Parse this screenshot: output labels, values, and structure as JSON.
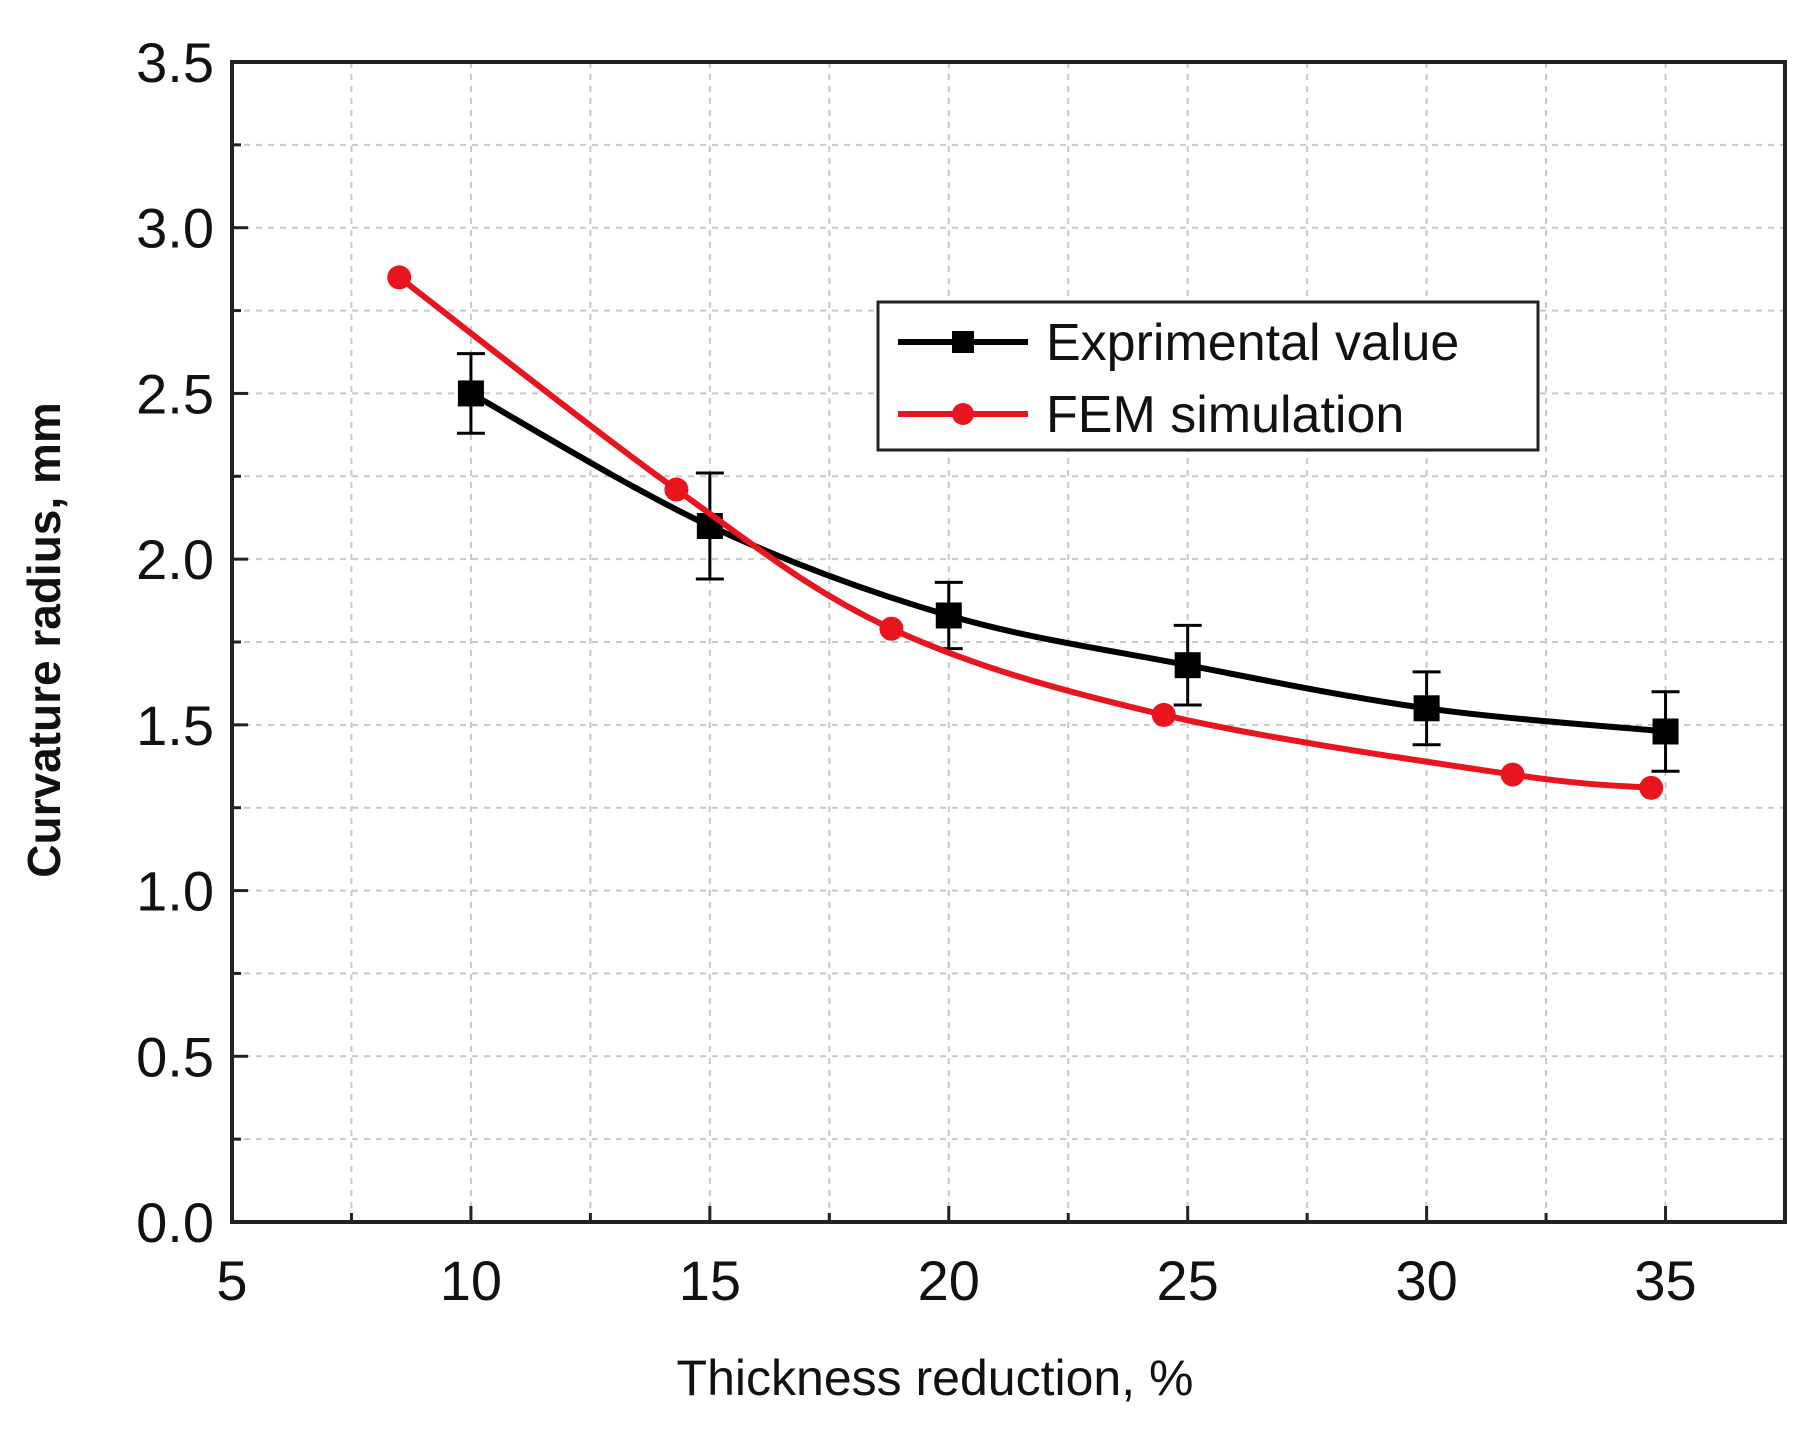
{
  "chart_data": {
    "type": "line",
    "title": "",
    "xlabel": "Thickness reduction, %",
    "ylabel": "Curvature radius, mm",
    "xlim": [
      5,
      37.5
    ],
    "ylim": [
      0.0,
      3.5
    ],
    "x_ticks": [
      5,
      10,
      15,
      20,
      25,
      30,
      35
    ],
    "x_tick_labels": [
      "5",
      "10",
      "15",
      "20",
      "25",
      "30",
      "35"
    ],
    "x_minor_step": 2.5,
    "y_ticks": [
      0.0,
      0.5,
      1.0,
      1.5,
      2.0,
      2.5,
      3.0,
      3.5
    ],
    "y_tick_labels": [
      "0.0",
      "0.5",
      "1.0",
      "1.5",
      "2.0",
      "2.5",
      "3.0",
      "3.5"
    ],
    "y_minor_step": 0.25,
    "grid": true,
    "legend_position": "upper-right",
    "series": [
      {
        "name": "Exprimental value",
        "color": "#000000",
        "marker": "square",
        "x": [
          10,
          15,
          20,
          25,
          30,
          35
        ],
        "y": [
          2.5,
          2.1,
          1.83,
          1.68,
          1.55,
          1.48
        ],
        "error": [
          0.12,
          0.16,
          0.1,
          0.12,
          0.11,
          0.12
        ]
      },
      {
        "name": "FEM simulation",
        "color": "#e8141e",
        "marker": "circle",
        "x": [
          8.5,
          14.3,
          18.8,
          24.5,
          31.8,
          34.7
        ],
        "y": [
          2.85,
          2.21,
          1.79,
          1.53,
          1.35,
          1.31
        ]
      }
    ]
  }
}
